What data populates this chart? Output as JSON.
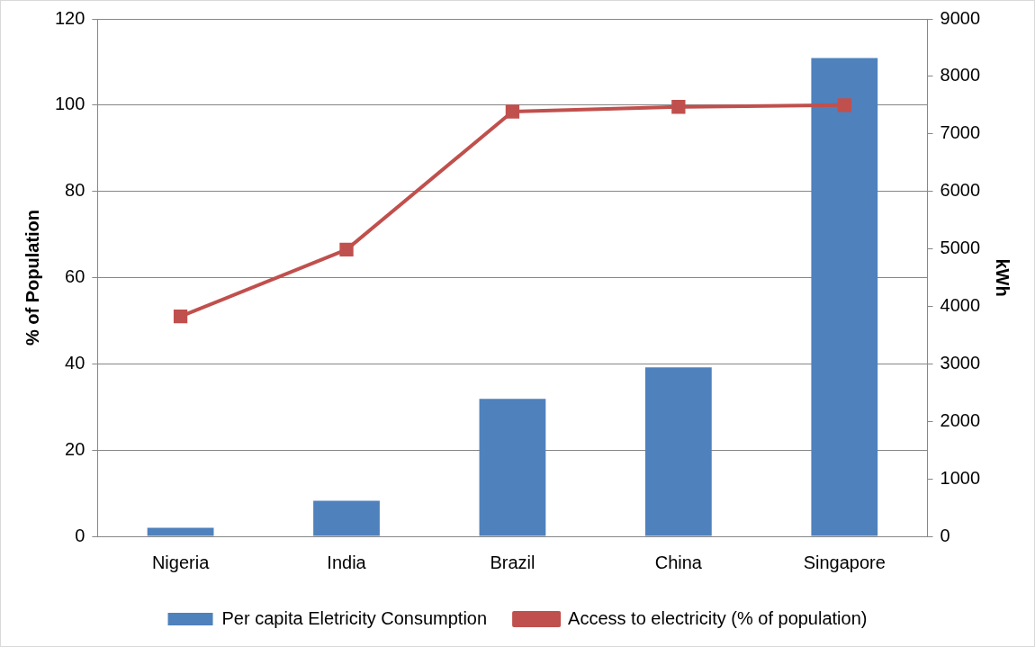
{
  "chart_data": {
    "type": "bar",
    "categories": [
      "Nigeria",
      "India",
      "Brazil",
      "China",
      "Singapore"
    ],
    "series": [
      {
        "name": "Per capita Eletricity Consumption",
        "axis": "y2",
        "color": "#4f81bd",
        "values": [
          150,
          620,
          2390,
          2940,
          8320
        ]
      },
      {
        "name": "Access to electricity (% of population)",
        "type": "line",
        "color": "#c0504d",
        "marker": "square",
        "values": [
          51,
          66.5,
          98.5,
          99.6,
          100
        ]
      }
    ],
    "ylabel": "% of Population",
    "y2label": "kWh",
    "ylim": [
      0,
      120
    ],
    "yticks": [
      0,
      20,
      40,
      60,
      80,
      100,
      120
    ],
    "y2lim": [
      0,
      9000
    ],
    "y2ticks": [
      0,
      1000,
      2000,
      3000,
      4000,
      5000,
      6000,
      7000,
      8000,
      9000
    ],
    "grid": "y",
    "legend": "bottom"
  }
}
